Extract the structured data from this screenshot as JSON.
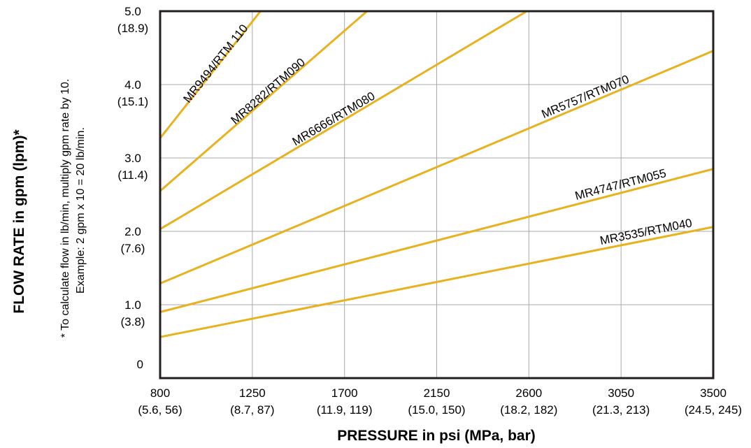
{
  "chart_data": {
    "type": "line",
    "xlabel": "PRESSURE in psi (MPa, bar)",
    "ylabel": "FLOW RATE in gpm (lpm)*",
    "xlim": [
      800,
      3500
    ],
    "ylim": [
      0,
      5.0
    ],
    "grid": true,
    "line_color": "#e8b21e",
    "frame_color": "#231f20",
    "grid_color": "#a7a9ac",
    "x_ticks": [
      {
        "value": 800,
        "label": "800",
        "sublabel": "(5.6, 56)"
      },
      {
        "value": 1250,
        "label": "1250",
        "sublabel": "(8.7, 87)"
      },
      {
        "value": 1700,
        "label": "1700",
        "sublabel": "(11.9, 119)"
      },
      {
        "value": 2150,
        "label": "2150",
        "sublabel": "(15.0, 150)"
      },
      {
        "value": 2600,
        "label": "2600",
        "sublabel": "(18.2, 182)"
      },
      {
        "value": 3050,
        "label": "3050",
        "sublabel": "(21.3, 213)"
      },
      {
        "value": 3500,
        "label": "3500",
        "sublabel": "(24.5, 245)"
      }
    ],
    "y_ticks": [
      {
        "value": 0,
        "label": "0",
        "sublabel": ""
      },
      {
        "value": 1.0,
        "label": "1.0",
        "sublabel": "(3.8)"
      },
      {
        "value": 2.0,
        "label": "2.0",
        "sublabel": "(7.6)"
      },
      {
        "value": 3.0,
        "label": "3.0",
        "sublabel": "(11.4)"
      },
      {
        "value": 4.0,
        "label": "4.0",
        "sublabel": "(15.1)"
      },
      {
        "value": 5.0,
        "label": "5.0",
        "sublabel": "(18.9)"
      }
    ],
    "footnote": [
      "* To calculate flow in lb/min, multiply gpm rate by 10.",
      "Example: 2 gpm x 10 = 20 lb/min."
    ],
    "series": [
      {
        "name": "MR9494/RTM 110",
        "x": [
          800,
          1290
        ],
        "y": [
          3.27,
          5.0
        ]
      },
      {
        "name": "MR8282/RTM090",
        "x": [
          800,
          1810
        ],
        "y": [
          2.55,
          5.0
        ]
      },
      {
        "name": "MR6666/RTM080",
        "x": [
          800,
          2590
        ],
        "y": [
          2.03,
          5.0
        ]
      },
      {
        "name": "MR5757/RTM070",
        "x": [
          800,
          3500
        ],
        "y": [
          1.29,
          4.46
        ]
      },
      {
        "name": "MR4747/RTM055",
        "x": [
          800,
          3500
        ],
        "y": [
          0.9,
          2.85
        ]
      },
      {
        "name": "MR3535/RTM040",
        "x": [
          800,
          3500
        ],
        "y": [
          0.56,
          2.06
        ]
      }
    ]
  }
}
